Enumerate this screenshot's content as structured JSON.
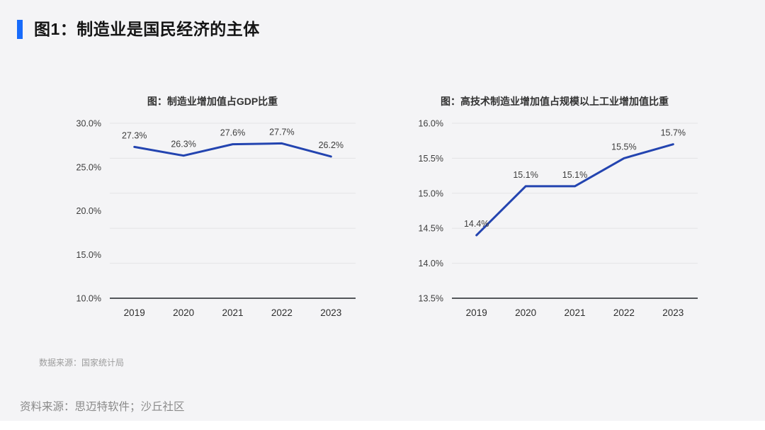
{
  "page": {
    "title": "图1：制造业是国民经济的主体",
    "data_source_note": "数据来源：国家统计局",
    "source_note": "资料来源：思迈特软件；沙丘社区"
  },
  "colors": {
    "background": "#f4f4f6",
    "accent": "#176bfb",
    "line": "#2344b0",
    "gridline": "#e3e3e5",
    "axis": "#53565a",
    "chart_title_text": "#333333",
    "tick_text": "#3d3d3d",
    "year_text": "#2e2e2e",
    "data_label_text": "#3d3d3d"
  },
  "chart_data": [
    {
      "type": "line",
      "title": "图：制造业增加值占GDP比重",
      "categories": [
        "2019",
        "2020",
        "2021",
        "2022",
        "2023"
      ],
      "values": [
        27.3,
        26.3,
        27.6,
        27.7,
        26.2
      ],
      "data_labels": [
        "27.3%",
        "26.3%",
        "27.6%",
        "27.7%",
        "26.2%"
      ],
      "xlabel": "",
      "ylabel": "",
      "ylim": [
        10,
        30
      ],
      "y_ticks": [
        {
          "value": 30,
          "label": "30.0%"
        },
        {
          "value": 25,
          "label": "25.0%"
        },
        {
          "value": 20,
          "label": "20.0%"
        },
        {
          "value": 15,
          "label": "15.0%"
        },
        {
          "value": 10,
          "label": "10.0%"
        }
      ],
      "n_gridlines": 6,
      "grid": true,
      "legend": false
    },
    {
      "type": "line",
      "title": "图：高技术制造业增加值占规模以上工业增加值比重",
      "categories": [
        "2019",
        "2020",
        "2021",
        "2022",
        "2023"
      ],
      "values": [
        14.4,
        15.1,
        15.1,
        15.5,
        15.7
      ],
      "data_labels": [
        "14.4%",
        "15.1%",
        "15.1%",
        "15.5%",
        "15.7%"
      ],
      "xlabel": "",
      "ylabel": "",
      "ylim": [
        13.5,
        16
      ],
      "y_ticks": [
        {
          "value": 16.0,
          "label": "16.0%"
        },
        {
          "value": 15.5,
          "label": "15.5%"
        },
        {
          "value": 15.0,
          "label": "15.0%"
        },
        {
          "value": 14.5,
          "label": "14.5%"
        },
        {
          "value": 14.0,
          "label": "14.0%"
        },
        {
          "value": 13.5,
          "label": "13.5%"
        }
      ],
      "n_gridlines": 6,
      "grid": true,
      "legend": false
    }
  ]
}
